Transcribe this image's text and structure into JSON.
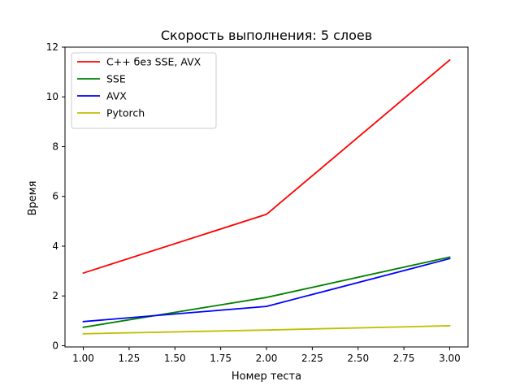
{
  "chart_data": {
    "type": "line",
    "title": "Скорость выполнения: 5 слоев",
    "xlabel": "Номер теста",
    "ylabel": "Время",
    "x": [
      1.0,
      2.0,
      3.0
    ],
    "xlim": [
      0.9,
      3.1
    ],
    "ylim": [
      -0.05,
      12.0
    ],
    "xticks": [
      "1.00",
      "1.25",
      "1.50",
      "1.75",
      "2.00",
      "2.25",
      "2.50",
      "2.75",
      "3.00"
    ],
    "yticks": [
      "0",
      "2",
      "4",
      "6",
      "8",
      "10",
      "12"
    ],
    "grid": false,
    "legend_position": "top-left",
    "series": [
      {
        "name": "C++ без SSE, AVX",
        "color": "#ff0000",
        "values": [
          2.92,
          5.28,
          11.48
        ]
      },
      {
        "name": "SSE",
        "color": "#008000",
        "values": [
          0.74,
          1.94,
          3.56
        ]
      },
      {
        "name": "AVX",
        "color": "#0000ff",
        "values": [
          0.97,
          1.58,
          3.5
        ]
      },
      {
        "name": "Pytorch",
        "color": "#bfbf00",
        "values": [
          0.48,
          0.63,
          0.8
        ]
      }
    ]
  }
}
